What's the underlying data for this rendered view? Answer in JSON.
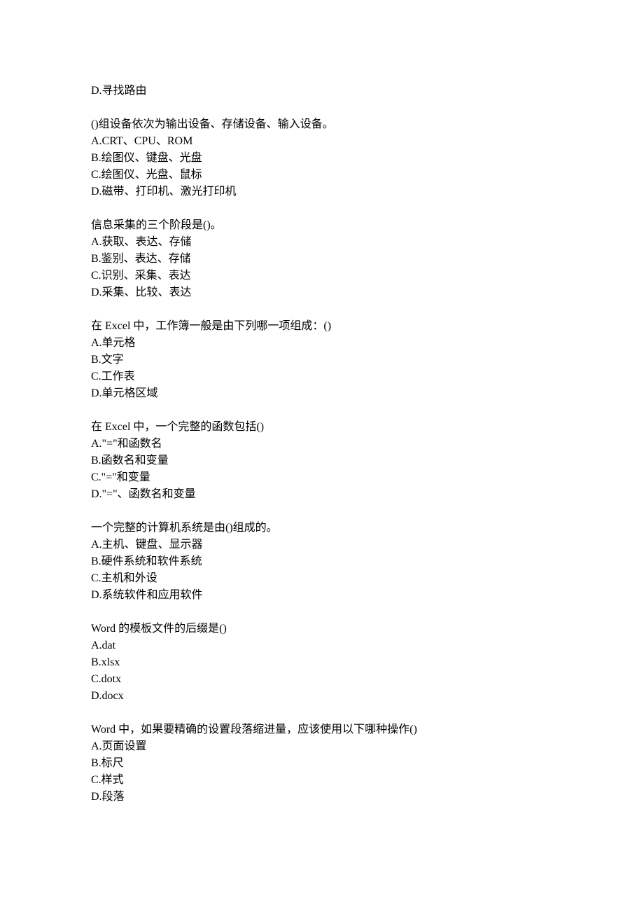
{
  "fragment": {
    "option_d": "D.寻找路由"
  },
  "q1": {
    "stem": "()组设备依次为输出设备、存储设备、输入设备。",
    "a": "A.CRT、CPU、ROM",
    "b": "B.绘图仪、键盘、光盘",
    "c": "C.绘图仪、光盘、鼠标",
    "d": "D.磁带、打印机、激光打印机"
  },
  "q2": {
    "stem": "信息采集的三个阶段是()。",
    "a": "A.获取、表达、存储",
    "b": "B.鉴别、表达、存储",
    "c": "C.识别、采集、表达",
    "d": "D.采集、比较、表达"
  },
  "q3": {
    "stem": "在 Excel 中，工作簿一般是由下列哪一项组成：()",
    "a": "A.单元格",
    "b": "B.文字",
    "c": "C.工作表",
    "d": "D.单元格区域"
  },
  "q4": {
    "stem": "在 Excel 中，一个完整的函数包括()",
    "a": "A.\"=\"和函数名",
    "b": "B.函数名和变量",
    "c": "C.\"=\"和变量",
    "d": "D.\"=\"、函数名和变量"
  },
  "q5": {
    "stem": "一个完整的计算机系统是由()组成的。",
    "a": "A.主机、键盘、显示器",
    "b": "B.硬件系统和软件系统",
    "c": "C.主机和外设",
    "d": "D.系统软件和应用软件"
  },
  "q6": {
    "stem": "Word 的模板文件的后缀是()",
    "a": "A.dat",
    "b": "B.xlsx",
    "c": "C.dotx",
    "d": "D.docx"
  },
  "q7": {
    "stem": "Word 中，如果要精确的设置段落缩进量，应该使用以下哪种操作()",
    "a": "A.页面设置",
    "b": "B.标尺",
    "c": "C.样式",
    "d": "D.段落"
  }
}
